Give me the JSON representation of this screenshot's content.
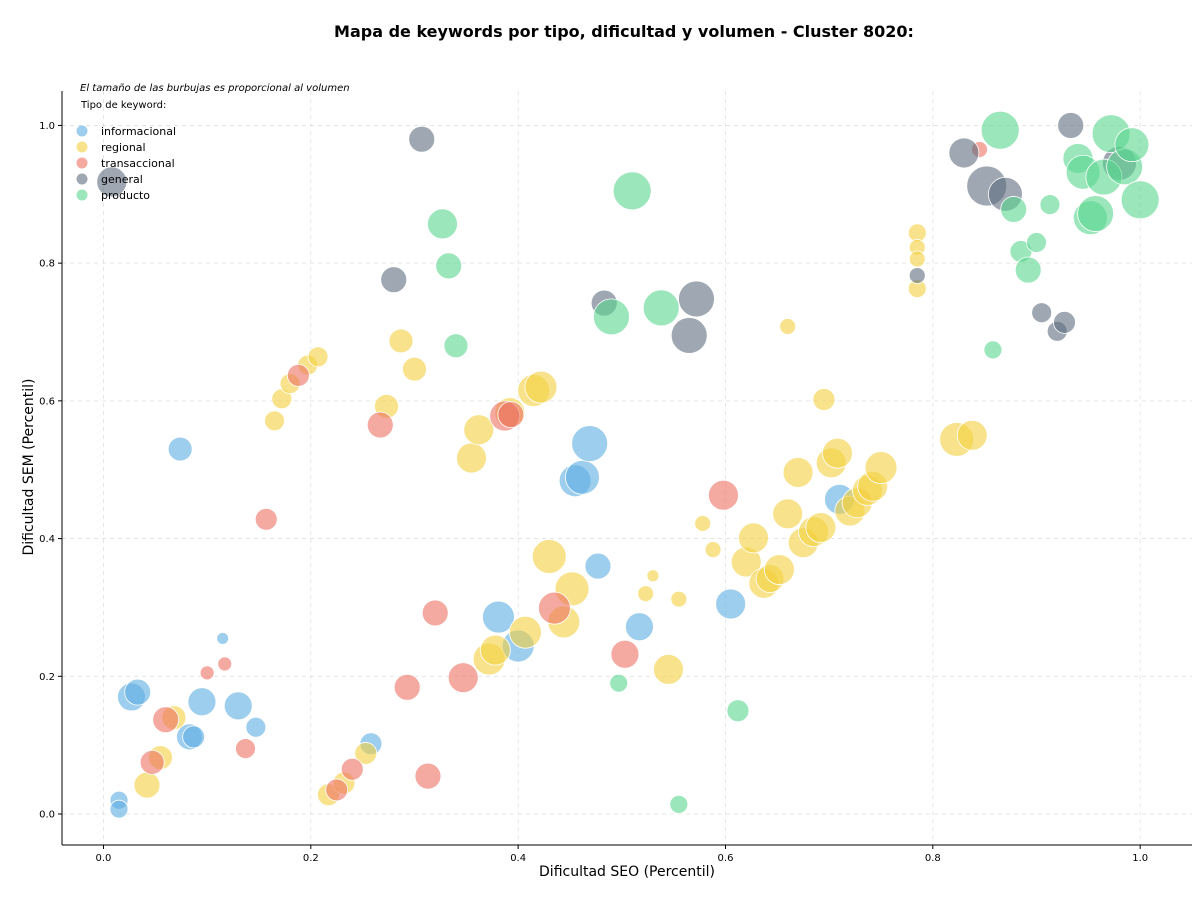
{
  "chart_data": {
    "type": "scatter",
    "title": "Mapa de keywords por tipo, dificultad y volumen - Cluster 8020:",
    "xlabel": "Dificultad SEO (Percentil)",
    "ylabel": "Dificultad SEM (Percentil)",
    "xlim": [
      -0.04,
      1.05
    ],
    "ylim": [
      -0.045,
      1.05
    ],
    "xticks": [
      "0.0",
      "0.2",
      "0.4",
      "0.6",
      "0.8",
      "1.0"
    ],
    "yticks": [
      "0.0",
      "0.2",
      "0.4",
      "0.6",
      "0.8",
      "1.0"
    ],
    "grid": true,
    "note": "El tamaño de las burbujas es proporcional al volumen",
    "legend_title": "Tipo de keyword:",
    "legend_position": "top-left",
    "series": [
      {
        "name": "informacional",
        "color": "#5DADE2",
        "points": [
          [
            0.074,
            0.53,
            12
          ],
          [
            0.015,
            0.02,
            9
          ],
          [
            0.015,
            0.007,
            9
          ],
          [
            0.027,
            0.17,
            14
          ],
          [
            0.033,
            0.177,
            13
          ],
          [
            0.083,
            0.112,
            13
          ],
          [
            0.087,
            0.112,
            11
          ],
          [
            0.095,
            0.163,
            14
          ],
          [
            0.115,
            0.255,
            6
          ],
          [
            0.13,
            0.157,
            14
          ],
          [
            0.147,
            0.126,
            10
          ],
          [
            0.258,
            0.102,
            11
          ],
          [
            0.381,
            0.286,
            16
          ],
          [
            0.4,
            0.244,
            16
          ],
          [
            0.455,
            0.484,
            16
          ],
          [
            0.462,
            0.489,
            17
          ],
          [
            0.469,
            0.538,
            18
          ],
          [
            0.477,
            0.36,
            13
          ],
          [
            0.517,
            0.272,
            14
          ],
          [
            0.605,
            0.305,
            15
          ],
          [
            0.71,
            0.457,
            15
          ]
        ]
      },
      {
        "name": "regional",
        "color": "#F4D03F",
        "points": [
          [
            0.042,
            0.042,
            13
          ],
          [
            0.055,
            0.082,
            12
          ],
          [
            0.068,
            0.14,
            12
          ],
          [
            0.165,
            0.571,
            10
          ],
          [
            0.172,
            0.603,
            10
          ],
          [
            0.18,
            0.625,
            10
          ],
          [
            0.197,
            0.652,
            10
          ],
          [
            0.207,
            0.664,
            10
          ],
          [
            0.217,
            0.028,
            11
          ],
          [
            0.232,
            0.045,
            11
          ],
          [
            0.253,
            0.088,
            11
          ],
          [
            0.273,
            0.592,
            12
          ],
          [
            0.287,
            0.687,
            12
          ],
          [
            0.3,
            0.646,
            12
          ],
          [
            0.355,
            0.517,
            15
          ],
          [
            0.362,
            0.558,
            15
          ],
          [
            0.372,
            0.225,
            16
          ],
          [
            0.378,
            0.238,
            15
          ],
          [
            0.392,
            0.583,
            15
          ],
          [
            0.407,
            0.264,
            16
          ],
          [
            0.415,
            0.615,
            16
          ],
          [
            0.422,
            0.62,
            16
          ],
          [
            0.43,
            0.374,
            17
          ],
          [
            0.444,
            0.279,
            16
          ],
          [
            0.452,
            0.327,
            17
          ],
          [
            0.523,
            0.32,
            8
          ],
          [
            0.53,
            0.346,
            6
          ],
          [
            0.545,
            0.21,
            15
          ],
          [
            0.555,
            0.312,
            8
          ],
          [
            0.578,
            0.422,
            8
          ],
          [
            0.588,
            0.384,
            8
          ],
          [
            0.62,
            0.366,
            15
          ],
          [
            0.627,
            0.401,
            15
          ],
          [
            0.637,
            0.335,
            15
          ],
          [
            0.643,
            0.342,
            14
          ],
          [
            0.652,
            0.355,
            15
          ],
          [
            0.66,
            0.436,
            15
          ],
          [
            0.66,
            0.708,
            8
          ],
          [
            0.67,
            0.496,
            15
          ],
          [
            0.675,
            0.394,
            15
          ],
          [
            0.685,
            0.41,
            15
          ],
          [
            0.692,
            0.416,
            15
          ],
          [
            0.695,
            0.602,
            11
          ],
          [
            0.702,
            0.51,
            15
          ],
          [
            0.708,
            0.524,
            15
          ],
          [
            0.72,
            0.44,
            15
          ],
          [
            0.727,
            0.452,
            15
          ],
          [
            0.737,
            0.47,
            15
          ],
          [
            0.742,
            0.476,
            15
          ],
          [
            0.75,
            0.503,
            16
          ],
          [
            0.785,
            0.844,
            9
          ],
          [
            0.785,
            0.823,
            8
          ],
          [
            0.785,
            0.806,
            8
          ],
          [
            0.785,
            0.763,
            9
          ],
          [
            0.823,
            0.544,
            17
          ],
          [
            0.838,
            0.55,
            15
          ]
        ]
      },
      {
        "name": "transaccional",
        "color": "#EC7063",
        "points": [
          [
            0.047,
            0.075,
            12
          ],
          [
            0.06,
            0.137,
            13
          ],
          [
            0.1,
            0.205,
            7
          ],
          [
            0.117,
            0.218,
            7
          ],
          [
            0.137,
            0.095,
            10
          ],
          [
            0.157,
            0.428,
            11
          ],
          [
            0.188,
            0.637,
            11
          ],
          [
            0.225,
            0.035,
            11
          ],
          [
            0.24,
            0.065,
            11
          ],
          [
            0.267,
            0.565,
            13
          ],
          [
            0.293,
            0.184,
            13
          ],
          [
            0.313,
            0.055,
            13
          ],
          [
            0.32,
            0.292,
            13
          ],
          [
            0.347,
            0.198,
            15
          ],
          [
            0.387,
            0.578,
            15
          ],
          [
            0.393,
            0.58,
            13
          ],
          [
            0.435,
            0.299,
            16
          ],
          [
            0.503,
            0.232,
            14
          ],
          [
            0.598,
            0.463,
            15
          ],
          [
            0.845,
            0.965,
            8
          ]
        ]
      },
      {
        "name": "general",
        "color": "#5D6D7E",
        "points": [
          [
            0.008,
            0.918,
            15
          ],
          [
            0.307,
            0.98,
            13
          ],
          [
            0.28,
            0.776,
            13
          ],
          [
            0.483,
            0.742,
            13
          ],
          [
            0.565,
            0.695,
            18
          ],
          [
            0.572,
            0.748,
            18
          ],
          [
            0.785,
            0.782,
            8
          ],
          [
            0.83,
            0.96,
            15
          ],
          [
            0.852,
            0.912,
            20
          ],
          [
            0.87,
            0.9,
            17
          ],
          [
            0.905,
            0.728,
            10
          ],
          [
            0.92,
            0.701,
            10
          ],
          [
            0.927,
            0.714,
            11
          ],
          [
            0.933,
            1.0,
            13
          ],
          [
            0.98,
            0.945,
            17
          ]
        ]
      },
      {
        "name": "producto",
        "color": "#58D68D",
        "points": [
          [
            0.327,
            0.857,
            15
          ],
          [
            0.333,
            0.796,
            13
          ],
          [
            0.34,
            0.68,
            12
          ],
          [
            0.49,
            0.722,
            18
          ],
          [
            0.497,
            0.19,
            9
          ],
          [
            0.51,
            0.905,
            19
          ],
          [
            0.538,
            0.735,
            18
          ],
          [
            0.555,
            0.014,
            9
          ],
          [
            0.612,
            0.15,
            11
          ],
          [
            0.858,
            0.674,
            9
          ],
          [
            0.865,
            0.993,
            19
          ],
          [
            0.878,
            0.878,
            13
          ],
          [
            0.885,
            0.817,
            11
          ],
          [
            0.892,
            0.79,
            13
          ],
          [
            0.9,
            0.83,
            10
          ],
          [
            0.913,
            0.885,
            10
          ],
          [
            0.94,
            0.952,
            15
          ],
          [
            0.945,
            0.932,
            17
          ],
          [
            0.952,
            0.866,
            17
          ],
          [
            0.957,
            0.872,
            18
          ],
          [
            0.965,
            0.925,
            18
          ],
          [
            0.972,
            0.988,
            19
          ],
          [
            0.985,
            0.94,
            18
          ],
          [
            0.992,
            0.972,
            17
          ],
          [
            1.0,
            0.892,
            19
          ]
        ]
      }
    ]
  }
}
